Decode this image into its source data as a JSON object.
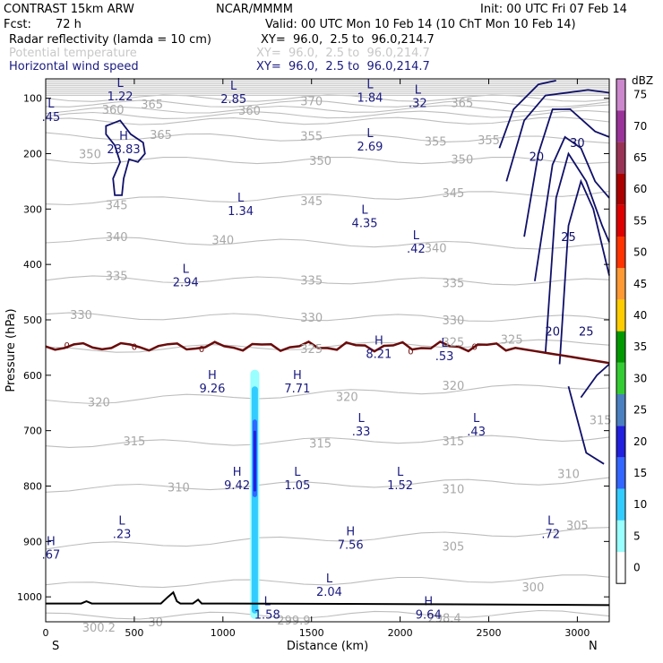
{
  "header": {
    "model": "CONTRAST 15km ARW",
    "org": "NCAR/MMMM",
    "init": "Init: 00 UTC Fri 07 Feb 14",
    "fcst_label": "Fcst:",
    "fcst_value": "72 h",
    "valid": "Valid: 00 UTC Mon 10 Feb 14 (10 ChT Mon 10 Feb 14)",
    "fields": [
      {
        "name": "Radar reflectivity (lamda = 10 cm)",
        "xy": "XY=  96.0,  2.5 to  96.0,214.7",
        "color": "#000000"
      },
      {
        "name": "Potential temperature",
        "xy": "XY=  96.0,  2.5 to  96.0,214.7",
        "color": "#c8c8c8"
      },
      {
        "name": "Horizontal wind speed",
        "xy": "XY=  96.0,  2.5 to  96.0,214.7",
        "color": "#1a1a80"
      }
    ]
  },
  "chart_data": {
    "type": "contour-cross-section",
    "xlabel": "Distance (km)",
    "ylabel": "Pressure (hPa)",
    "x_ticks": [
      0,
      500,
      1000,
      1500,
      2000,
      2500,
      3000
    ],
    "y_ticks": [
      100,
      200,
      300,
      400,
      500,
      600,
      700,
      800,
      900,
      1000
    ],
    "xlim": [
      0,
      3180
    ],
    "ylim": [
      1045,
      65
    ],
    "end_labels": {
      "left": "S",
      "right": "N"
    },
    "colorbar": {
      "unit": "dBZ",
      "levels": [
        "0",
        "5",
        "10",
        "15",
        "20",
        "25",
        "30",
        "35",
        "40",
        "45",
        "50",
        "55",
        "60",
        "65",
        "70",
        "75"
      ],
      "colors": [
        "#ffffff",
        "#99ffff",
        "#33ccff",
        "#3366ff",
        "#2020dd",
        "#4a80c0",
        "#33cc33",
        "#009900",
        "#ffcc00",
        "#ff9933",
        "#ff3300",
        "#dd0000",
        "#aa0000",
        "#993355",
        "#993399",
        "#cc88cc"
      ]
    },
    "theta_labels": [
      {
        "v": "360",
        "x": 380,
        "p": 120
      },
      {
        "v": "365",
        "x": 600,
        "p": 110
      },
      {
        "v": "370",
        "x": 1500,
        "p": 105
      },
      {
        "v": "365",
        "x": 2350,
        "p": 108
      },
      {
        "v": "360",
        "x": 1150,
        "p": 122
      },
      {
        "v": "365",
        "x": 650,
        "p": 165
      },
      {
        "v": "355",
        "x": 1500,
        "p": 168
      },
      {
        "v": "355",
        "x": 2200,
        "p": 177
      },
      {
        "v": "355",
        "x": 2500,
        "p": 175
      },
      {
        "v": "350",
        "x": 250,
        "p": 200
      },
      {
        "v": "350",
        "x": 1550,
        "p": 212
      },
      {
        "v": "350",
        "x": 2350,
        "p": 210
      },
      {
        "v": "345",
        "x": 400,
        "p": 292
      },
      {
        "v": "345",
        "x": 1500,
        "p": 285
      },
      {
        "v": "345",
        "x": 2300,
        "p": 270
      },
      {
        "v": "340",
        "x": 400,
        "p": 350
      },
      {
        "v": "340",
        "x": 1000,
        "p": 355
      },
      {
        "v": "340",
        "x": 2200,
        "p": 370
      },
      {
        "v": "335",
        "x": 400,
        "p": 420
      },
      {
        "v": "335",
        "x": 1500,
        "p": 428
      },
      {
        "v": "335",
        "x": 2300,
        "p": 433
      },
      {
        "v": "330",
        "x": 200,
        "p": 490
      },
      {
        "v": "330",
        "x": 1500,
        "p": 495
      },
      {
        "v": "330",
        "x": 2300,
        "p": 500
      },
      {
        "v": "325",
        "x": 1500,
        "p": 552
      },
      {
        "v": "325",
        "x": 2300,
        "p": 540
      },
      {
        "v": "325",
        "x": 2630,
        "p": 535
      },
      {
        "v": "320",
        "x": 300,
        "p": 648
      },
      {
        "v": "320",
        "x": 1700,
        "p": 638
      },
      {
        "v": "320",
        "x": 2300,
        "p": 618
      },
      {
        "v": "315",
        "x": 500,
        "p": 718
      },
      {
        "v": "315",
        "x": 1550,
        "p": 722
      },
      {
        "v": "315",
        "x": 2300,
        "p": 718
      },
      {
        "v": "310",
        "x": 750,
        "p": 802
      },
      {
        "v": "310",
        "x": 2300,
        "p": 805
      },
      {
        "v": "310",
        "x": 2950,
        "p": 777
      },
      {
        "v": "305",
        "x": 2300,
        "p": 908
      },
      {
        "v": "305",
        "x": 3000,
        "p": 870
      },
      {
        "v": "300",
        "x": 2750,
        "p": 982
      },
      {
        "v": "300.2",
        "x": 300,
        "p": 1055
      },
      {
        "v": "30",
        "x": 620,
        "p": 1045
      },
      {
        "v": "299.9",
        "x": 1400,
        "p": 1042
      },
      {
        "v": "298.4",
        "x": 2250,
        "p": 1038
      },
      {
        "v": "315",
        "x": 3130,
        "p": 680
      }
    ],
    "wind_labels": [
      {
        "v": "20",
        "x": 2770,
        "p": 205
      },
      {
        "v": "30",
        "x": 3000,
        "p": 180
      },
      {
        "v": "25",
        "x": 2950,
        "p": 350
      },
      {
        "v": "20",
        "x": 2860,
        "p": 520
      },
      {
        "v": "25",
        "x": 3050,
        "p": 520
      }
    ],
    "extrema": [
      {
        "t": "L",
        "v": "1.22",
        "x": 420,
        "p": 83
      },
      {
        "t": "L",
        "v": "2.85",
        "x": 1060,
        "p": 88
      },
      {
        "t": "L",
        "v": "1.84",
        "x": 1830,
        "p": 85
      },
      {
        "t": "L",
        "v": ".32",
        "x": 2100,
        "p": 95
      },
      {
        "t": "L",
        "v": ".45",
        "x": 30,
        "p": 120
      },
      {
        "t": "H",
        "v": "23.83",
        "x": 440,
        "p": 178
      },
      {
        "t": "L",
        "v": "2.69",
        "x": 1830,
        "p": 173
      },
      {
        "t": "L",
        "v": "1.34",
        "x": 1100,
        "p": 290
      },
      {
        "t": "L",
        "v": "4.35",
        "x": 1800,
        "p": 312
      },
      {
        "t": "L",
        "v": ".42",
        "x": 2090,
        "p": 358
      },
      {
        "t": "L",
        "v": "2.94",
        "x": 790,
        "p": 418
      },
      {
        "t": "H",
        "v": "8.21",
        "x": 1880,
        "p": 548
      },
      {
        "t": "L",
        "v": ".53",
        "x": 2250,
        "p": 552
      },
      {
        "t": "H",
        "v": "9.26",
        "x": 940,
        "p": 610
      },
      {
        "t": "H",
        "v": "7.71",
        "x": 1420,
        "p": 610
      },
      {
        "t": "L",
        "v": ".33",
        "x": 1780,
        "p": 688
      },
      {
        "t": "L",
        "v": ".43",
        "x": 2430,
        "p": 688
      },
      {
        "t": "H",
        "v": "9.42",
        "x": 1080,
        "p": 785
      },
      {
        "t": "L",
        "v": "1.05",
        "x": 1420,
        "p": 785
      },
      {
        "t": "L",
        "v": "1.52",
        "x": 2000,
        "p": 785
      },
      {
        "t": "L",
        "v": ".23",
        "x": 430,
        "p": 873
      },
      {
        "t": "L",
        "v": ".72",
        "x": 2850,
        "p": 873
      },
      {
        "t": "H",
        "v": "7.56",
        "x": 1720,
        "p": 892
      },
      {
        "t": "H",
        "v": ".67",
        "x": 30,
        "p": 910
      },
      {
        "t": "L",
        "v": "2.04",
        "x": 1600,
        "p": 977
      },
      {
        "t": "L",
        "v": "1.58",
        "x": 1250,
        "p": 1018
      },
      {
        "t": "H",
        "v": "9.64",
        "x": 2160,
        "p": 1018
      }
    ]
  }
}
